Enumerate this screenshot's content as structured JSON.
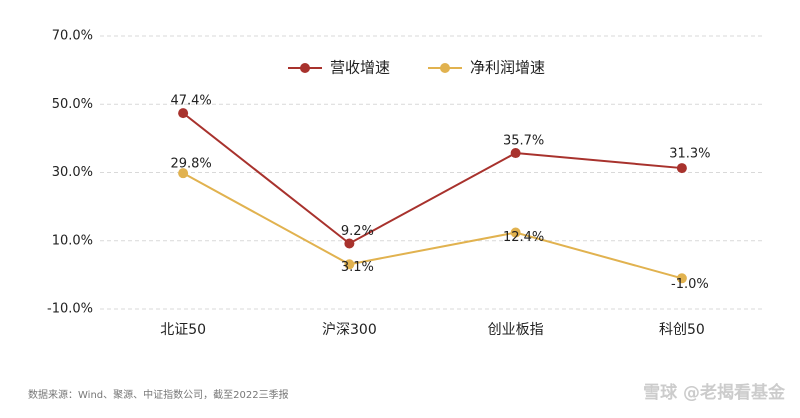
{
  "chart_data": {
    "type": "line",
    "categories": [
      "北证50",
      "沪深300",
      "创业板指",
      "科创50"
    ],
    "series": [
      {
        "name": "营收增速",
        "color": "#a8322d",
        "values": [
          47.4,
          9.2,
          35.7,
          31.3
        ],
        "value_labels": [
          "47.4%",
          "9.2%",
          "35.7%",
          "31.3%"
        ]
      },
      {
        "name": "净利润增速",
        "color": "#e1b24f",
        "values": [
          29.8,
          3.1,
          12.4,
          -1.0
        ],
        "value_labels": [
          "29.8%",
          "3.1%",
          "12.4%",
          "-1.0%"
        ]
      }
    ],
    "ylim": [
      -10,
      70
    ],
    "yticks": [
      {
        "value": -10,
        "label": "-10.0%"
      },
      {
        "value": 10,
        "label": "10.0%"
      },
      {
        "value": 30,
        "label": "30.0%"
      },
      {
        "value": 50,
        "label": "50.0%"
      },
      {
        "value": 70,
        "label": "70.0%"
      }
    ],
    "grid": true,
    "legend": "top",
    "source": "数据来源：Wind、聚源、中证指数公司，截至2022三季报",
    "watermark": "雪球 @老揭看基金"
  }
}
